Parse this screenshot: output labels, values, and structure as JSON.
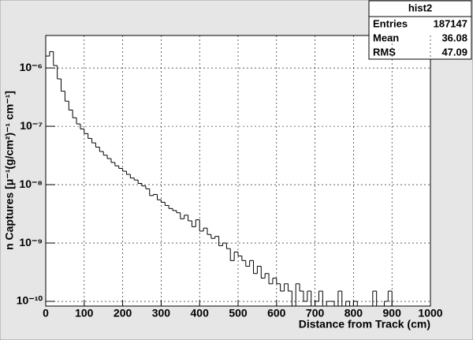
{
  "chart_data": {
    "type": "histogram",
    "x_label": "Distance from Track (cm)",
    "y_label": "n Captures [μ⁻¹(g/cm²)⁻¹ cm⁻¹]",
    "log_y": true,
    "grid": true,
    "color": "#000000",
    "bins": [
      0,
      10,
      20,
      30,
      40,
      50,
      60,
      70,
      80,
      90,
      100,
      110,
      120,
      130,
      140,
      150,
      160,
      170,
      180,
      190,
      200,
      210,
      220,
      230,
      240,
      250,
      260,
      270,
      280,
      290,
      300,
      310,
      320,
      330,
      340,
      350,
      360,
      370,
      380,
      390,
      400,
      410,
      420,
      430,
      440,
      450,
      460,
      470,
      480,
      490,
      500,
      510,
      520,
      530,
      540,
      550,
      560,
      570,
      580,
      590,
      600,
      610,
      620,
      630,
      640,
      650,
      660,
      670,
      680,
      690,
      700,
      710,
      720,
      730,
      740,
      750,
      760,
      770,
      780,
      790,
      800,
      810,
      820,
      830,
      840,
      850,
      860,
      870,
      880,
      890,
      900,
      910,
      920,
      930,
      940,
      950,
      960,
      970,
      980,
      990,
      1000
    ],
    "values": [
      1.6e-06,
      1.9e-06,
      1.1e-06,
      6.5e-07,
      4e-07,
      2.7e-07,
      1.9e-07,
      1.4e-07,
      1.1e-07,
      9e-08,
      7.5e-08,
      6.2e-08,
      5.2e-08,
      4.4e-08,
      3.7e-08,
      3.2e-08,
      2.8e-08,
      2.4e-08,
      2.1e-08,
      1.9e-08,
      1.7e-08,
      1.5e-08,
      1.3e-08,
      1.2e-08,
      1.05e-08,
      9.5e-09,
      8.5e-09,
      6.5e-09,
      6.8e-09,
      5.5e-09,
      5e-09,
      4.4e-09,
      3.9e-09,
      3.6e-09,
      3.3e-09,
      2.6e-09,
      3e-09,
      2.4e-09,
      1.9e-09,
      2.5e-09,
      1.6e-09,
      1.8e-09,
      1.4e-09,
      1.2e-09,
      1.3e-09,
      9e-10,
      1e-09,
      8e-10,
      5e-10,
      7e-10,
      6e-10,
      5e-10,
      4e-10,
      5e-10,
      3e-10,
      4e-10,
      2.5e-10,
      3e-10,
      2e-10,
      2.5e-10,
      2e-10,
      1.5e-10,
      2e-10,
      1.5e-10,
      null,
      2e-10,
      1.5e-10,
      1e-10,
      1.5e-10,
      null,
      1e-10,
      1.5e-10,
      null,
      1e-10,
      1e-10,
      null,
      1.5e-10,
      null,
      1e-10,
      null,
      1e-10,
      null,
      null,
      null,
      null,
      1.5e-10,
      null,
      null,
      1e-10,
      1.5e-10,
      null,
      null,
      null,
      null,
      null,
      null,
      null,
      null,
      null,
      null
    ],
    "xlim": [
      0,
      1000
    ],
    "xticks": [
      0,
      100,
      200,
      300,
      400,
      500,
      600,
      700,
      800,
      900,
      1000
    ],
    "ylim": [
      8.3e-11,
      3.6e-06
    ],
    "yticks": [
      {
        "value": 1e-10,
        "label": "10⁻¹⁰"
      },
      {
        "value": 1e-09,
        "label": "10⁻⁹"
      },
      {
        "value": 1e-08,
        "label": "10⁻⁸"
      },
      {
        "value": 1e-07,
        "label": "10⁻⁷"
      },
      {
        "value": 1e-06,
        "label": "10⁻⁶"
      }
    ],
    "stats_box": {
      "title": "hist2",
      "rows": [
        {
          "label": "Entries",
          "value": 187147
        },
        {
          "label": "Mean",
          "value": 36.08
        },
        {
          "label": "RMS",
          "value": 47.09
        }
      ]
    }
  }
}
